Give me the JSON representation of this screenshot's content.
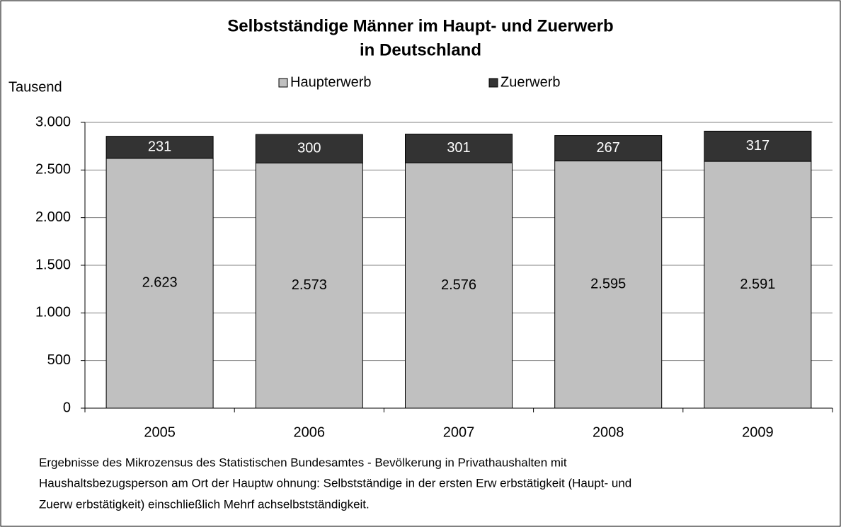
{
  "chart_data": {
    "type": "stacked_bar",
    "title": [
      "Selbstständige Männer im Haupt- und Zuerwerb",
      "in Deutschland"
    ],
    "y_label": "Tausend",
    "categories": [
      "2005",
      "2006",
      "2007",
      "2008",
      "2009"
    ],
    "series": [
      {
        "name": "Haupterwerb",
        "color": "#c0c0c0",
        "values": [
          2623,
          2573,
          2576,
          2595,
          2591
        ],
        "value_labels": [
          "2.623",
          "2.573",
          "2.576",
          "2.595",
          "2.591"
        ]
      },
      {
        "name": "Zuerwerb",
        "color": "#333333",
        "values": [
          231,
          300,
          301,
          267,
          317
        ]
      }
    ],
    "ylim": [
      0,
      3000
    ],
    "yticks": [
      0,
      500,
      {
        "value": 1000,
        "label": "1.000"
      },
      {
        "value": 1500,
        "label": "1.500"
      },
      {
        "value": 2000,
        "label": "2.000"
      },
      {
        "value": 2500,
        "label": "2.500"
      },
      {
        "value": 3000,
        "label": "3.000"
      }
    ],
    "grid": true,
    "footnote": [
      "Ergebnisse des Mikrozensus des Statistischen Bundesamtes - Bevölkerung in Privathaushalten mit",
      "Haushaltsbezugsperson am Ort der Hauptw ohnung: Selbstständige in der ersten Erw erbstätigkeit (Haupt- und",
      "Zuerw erbstätigkeit) einschließlich Mehrf achselbstständigkeit."
    ]
  }
}
